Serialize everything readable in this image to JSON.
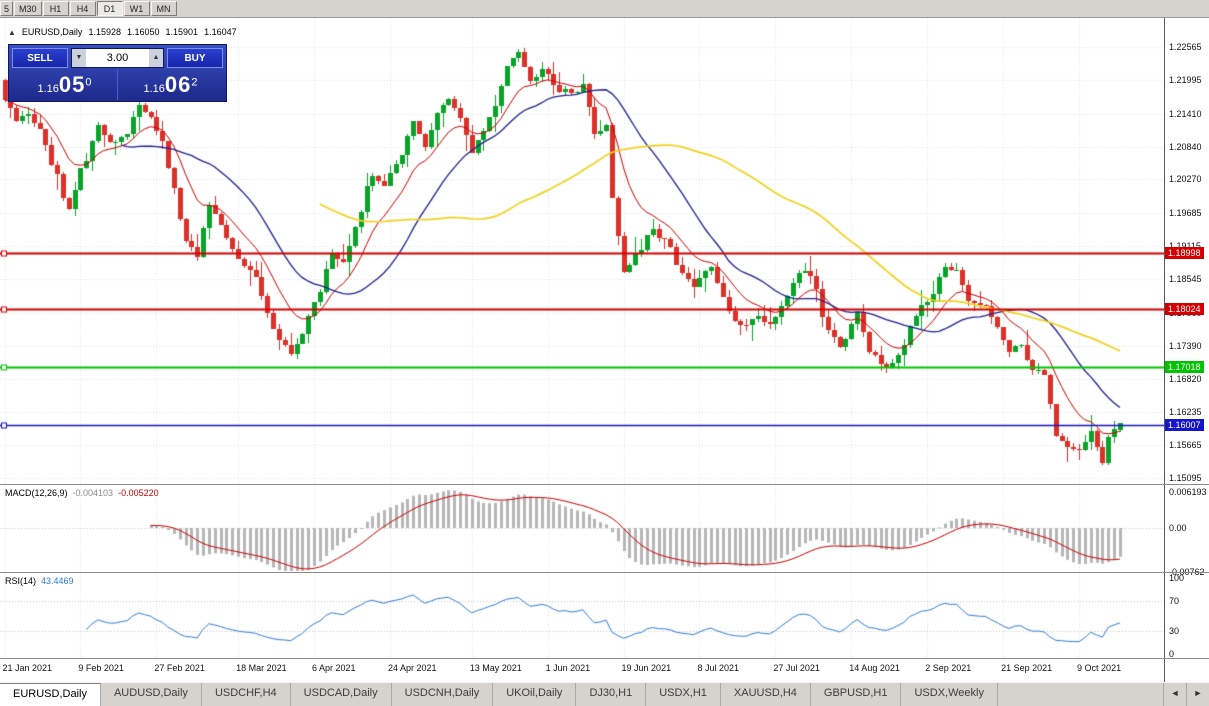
{
  "toolbar": {
    "timeframes": [
      {
        "label": "5",
        "active": false
      },
      {
        "label": "M30",
        "active": false
      },
      {
        "label": "H1",
        "active": false
      },
      {
        "label": "H4",
        "active": false
      },
      {
        "label": "D1",
        "active": true
      },
      {
        "label": "W1",
        "active": false
      },
      {
        "label": "MN",
        "active": false
      }
    ]
  },
  "info_line": {
    "collapse_glyph": "▲",
    "symbol": "EURUSD,Daily",
    "open": "1.15928",
    "high": "1.16050",
    "low": "1.15901",
    "close": "1.16047"
  },
  "trade_panel": {
    "sell_label": "SELL",
    "buy_label": "BUY",
    "lot_size": "3.00",
    "lot_down_glyph": "▼",
    "lot_up_glyph": "▲",
    "sell_price": {
      "prefix": "1.16",
      "big": "05",
      "sup": "0"
    },
    "buy_price": {
      "prefix": "1.16",
      "big": "06",
      "sup": "2"
    }
  },
  "chart_data": {
    "type": "candlestick",
    "title": "EURUSD,Daily",
    "n_candles": 192,
    "last_candle": {
      "o": 1.15928,
      "h": 1.1605,
      "l": 1.15901,
      "c": 1.16047
    },
    "close_keypoints": [
      [
        0,
        1.2165
      ],
      [
        2,
        1.2128
      ],
      [
        4,
        1.2142
      ],
      [
        6,
        1.2112
      ],
      [
        8,
        1.2052
      ],
      [
        11,
        1.1972
      ],
      [
        13,
        1.2042
      ],
      [
        16,
        1.2118
      ],
      [
        18,
        1.2092
      ],
      [
        21,
        1.2103
      ],
      [
        23,
        1.2158
      ],
      [
        25,
        1.2138
      ],
      [
        27,
        1.2088
      ],
      [
        29,
        1.2008
      ],
      [
        31,
        1.1916
      ],
      [
        33,
        1.1896
      ],
      [
        35,
        1.1982
      ],
      [
        37,
        1.1944
      ],
      [
        39,
        1.1904
      ],
      [
        41,
        1.1882
      ],
      [
        43,
        1.1856
      ],
      [
        45,
        1.1792
      ],
      [
        47,
        1.1752
      ],
      [
        49,
        1.1726
      ],
      [
        51,
        1.1756
      ],
      [
        53,
        1.1816
      ],
      [
        56,
        1.1894
      ],
      [
        58,
        1.1882
      ],
      [
        60,
        1.1948
      ],
      [
        63,
        1.2034
      ],
      [
        65,
        1.2016
      ],
      [
        67,
        1.2054
      ],
      [
        70,
        1.2124
      ],
      [
        72,
        1.2086
      ],
      [
        74,
        1.2144
      ],
      [
        76,
        1.2164
      ],
      [
        78,
        1.2132
      ],
      [
        80,
        1.2076
      ],
      [
        82,
        1.2112
      ],
      [
        84,
        1.2152
      ],
      [
        86,
        1.2228
      ],
      [
        88,
        1.2252
      ],
      [
        90,
        1.2196
      ],
      [
        92,
        1.2224
      ],
      [
        95,
        1.2182
      ],
      [
        97,
        1.2176
      ],
      [
        99,
        1.2192
      ],
      [
        101,
        1.2106
      ],
      [
        103,
        1.2122
      ],
      [
        104,
        1.1996
      ],
      [
        106,
        1.1866
      ],
      [
        108,
        1.1894
      ],
      [
        111,
        1.1938
      ],
      [
        113,
        1.1922
      ],
      [
        116,
        1.1862
      ],
      [
        118,
        1.1842
      ],
      [
        121,
        1.1878
      ],
      [
        123,
        1.1822
      ],
      [
        125,
        1.1782
      ],
      [
        127,
        1.1776
      ],
      [
        129,
        1.1792
      ],
      [
        131,
        1.1772
      ],
      [
        133,
        1.1806
      ],
      [
        136,
        1.1868
      ],
      [
        138,
        1.1864
      ],
      [
        141,
        1.1762
      ],
      [
        143,
        1.1736
      ],
      [
        146,
        1.1794
      ],
      [
        148,
        1.1732
      ],
      [
        151,
        1.1702
      ],
      [
        153,
        1.1726
      ],
      [
        156,
        1.1794
      ],
      [
        158,
        1.1816
      ],
      [
        161,
        1.1878
      ],
      [
        163,
        1.1868
      ],
      [
        165,
        1.1812
      ],
      [
        168,
        1.1806
      ],
      [
        170,
        1.1772
      ],
      [
        172,
        1.1726
      ],
      [
        174,
        1.1742
      ],
      [
        176,
        1.1696
      ],
      [
        178,
        1.1692
      ],
      [
        180,
        1.1582
      ],
      [
        182,
        1.1566
      ],
      [
        184,
        1.1556
      ],
      [
        186,
        1.1592
      ],
      [
        188,
        1.1532
      ],
      [
        189,
        1.1576
      ],
      [
        190,
        1.1593
      ],
      [
        191,
        1.16047
      ]
    ],
    "y_axis_labels": [
      "1.22565",
      "1.21995",
      "1.21410",
      "1.20840",
      "1.20270",
      "1.19685",
      "1.19115",
      "1.18545",
      "1.17960",
      "1.17390",
      "1.16820",
      "1.16235",
      "1.15665",
      "1.15095"
    ],
    "x_labels": [
      {
        "label": "21 Jan 2021",
        "idx": 0
      },
      {
        "label": "9 Feb 2021",
        "idx": 13
      },
      {
        "label": "27 Feb 2021",
        "idx": 26
      },
      {
        "label": "18 Mar 2021",
        "idx": 40
      },
      {
        "label": "6 Apr 2021",
        "idx": 53
      },
      {
        "label": "24 Apr 2021",
        "idx": 66
      },
      {
        "label": "13 May 2021",
        "idx": 80
      },
      {
        "label": "1 Jun 2021",
        "idx": 93
      },
      {
        "label": "19 Jun 2021",
        "idx": 106
      },
      {
        "label": "8 Jul 2021",
        "idx": 119
      },
      {
        "label": "27 Jul 2021",
        "idx": 132
      },
      {
        "label": "14 Aug 2021",
        "idx": 145
      },
      {
        "label": "2 Sep 2021",
        "idx": 158
      },
      {
        "label": "21 Sep 2021",
        "idx": 171
      },
      {
        "label": "9 Oct 2021",
        "idx": 184
      }
    ],
    "h_lines": [
      {
        "price": 1.18998,
        "color": "#d40000",
        "badge": "1.18998"
      },
      {
        "price": 1.18024,
        "color": "#d40000",
        "badge": "1.18024"
      },
      {
        "price": 1.17018,
        "color": "#00c400",
        "badge": "1.17018"
      },
      {
        "price": 1.16007,
        "color": "#1414c8",
        "badge": "1.16007"
      }
    ],
    "moving_averages": [
      {
        "kind": "ema",
        "period": 10,
        "color": "#cc0000"
      },
      {
        "kind": "sma",
        "period": 21,
        "color": "#20208f"
      },
      {
        "kind": "sma",
        "period": 55,
        "color": "#f2d21e"
      }
    ],
    "colors": {
      "up": "#0aa32a",
      "down": "#dc3028",
      "grid": "#e4e4e4",
      "macd_hist": "#b6b6b6",
      "macd_signal": "#cc0000",
      "rsi_line": "#2f7ed8"
    }
  },
  "macd": {
    "label": "MACD(12,26,9)",
    "value_main": "-0.004103",
    "value_signal": "-0.005220",
    "axis": [
      "0.006193",
      "0.00",
      "-0.00762"
    ]
  },
  "rsi": {
    "label": "RSI(14)",
    "value": "43.4469",
    "axis": [
      "100",
      "70",
      "30",
      "0"
    ],
    "levels": [
      70,
      30
    ]
  },
  "tabs": {
    "items": [
      {
        "label": "EURUSD,Daily",
        "active": true
      },
      {
        "label": "AUDUSD,Daily",
        "active": false
      },
      {
        "label": "USDCHF,H4",
        "active": false
      },
      {
        "label": "USDCAD,Daily",
        "active": false
      },
      {
        "label": "USDCNH,Daily",
        "active": false
      },
      {
        "label": "UKOil,Daily",
        "active": false
      },
      {
        "label": "DJ30,H1",
        "active": false
      },
      {
        "label": "USDX,H1",
        "active": false
      },
      {
        "label": "XAUUSD,H4",
        "active": false
      },
      {
        "label": "GBPUSD,H1",
        "active": false
      },
      {
        "label": "USDX,Weekly",
        "active": false
      }
    ],
    "left_arrow": "◄",
    "right_arrow": "►"
  }
}
